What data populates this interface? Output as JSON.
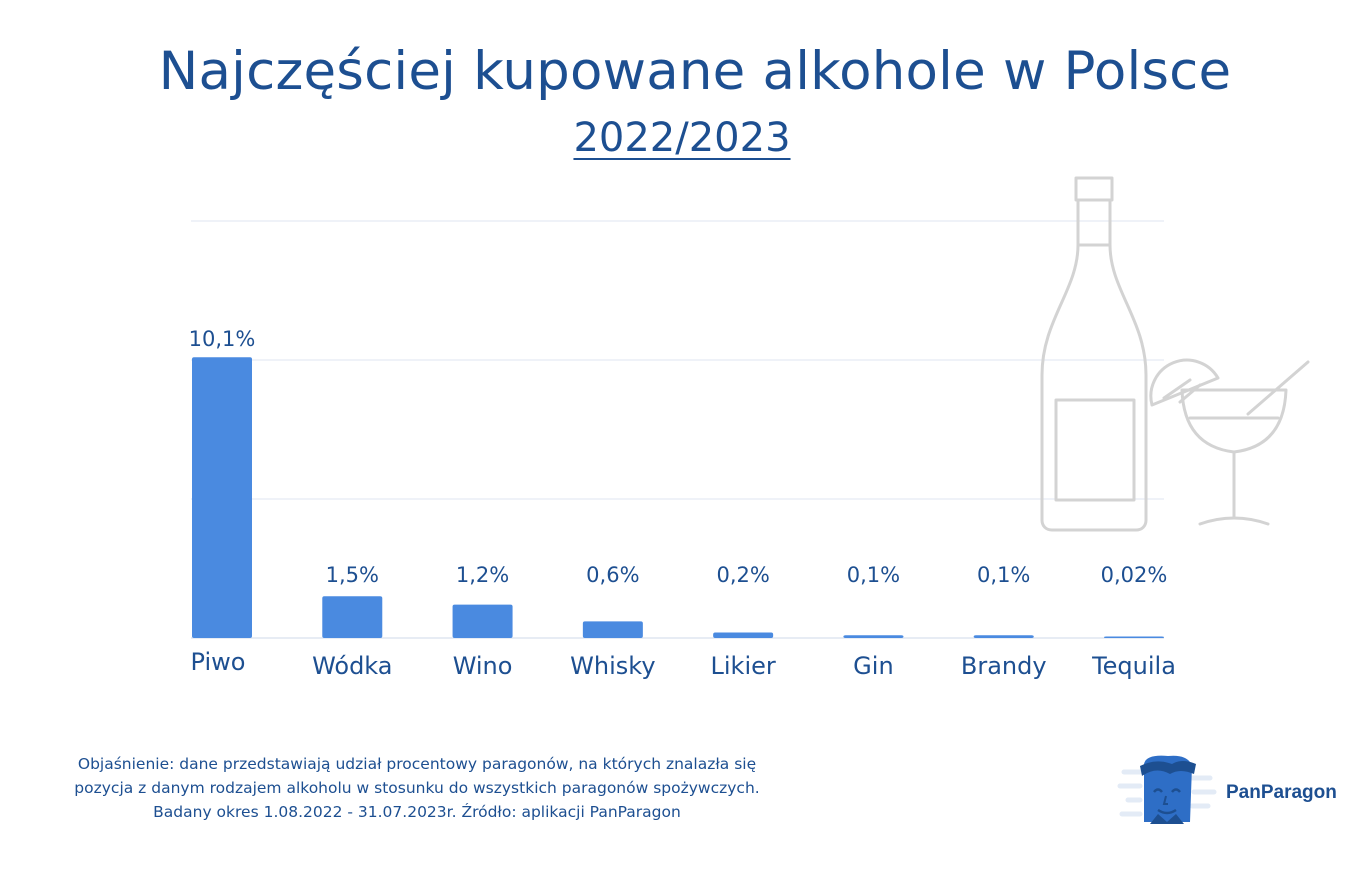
{
  "chart_data": {
    "type": "bar",
    "title": "Najczęściej kupowane alkohole w Polsce",
    "subtitle": "2022/2023",
    "categories": [
      "Piwo",
      "Wódka",
      "Wino",
      "Whisky",
      "Likier",
      "Gin",
      "Brandy",
      "Tequila"
    ],
    "values": [
      10.1,
      1.5,
      1.2,
      0.6,
      0.2,
      0.1,
      0.1,
      0.02
    ],
    "value_labels": [
      "10,1%",
      "1,5%",
      "1,2%",
      "0,6%",
      "0,2%",
      "0,1%",
      "0,1%",
      "0,02%"
    ],
    "ylim": [
      0,
      15
    ],
    "grid": true,
    "bar_color": "#4a8ae0"
  },
  "note": "Objaśnienie: dane przedstawiają udział procentowy paragonów, na których znalazła się pozycja z danym rodzajem alkoholu w stosunku do wszystkich paragonów spożywczych. Badany okres 1.08.2022 - 31.07.2023r.  Źródło: aplikacji PanParagon",
  "brand": {
    "name": "PanParagon"
  },
  "colors": {
    "text": "#1d4f91",
    "bar": "#4a8ae0",
    "grid": "#dfe5f0",
    "illustration": "#d0d0d0"
  },
  "icons": [
    "bottle-illustration",
    "cocktail-glass-illustration",
    "panparagon-mascot-icon"
  ]
}
